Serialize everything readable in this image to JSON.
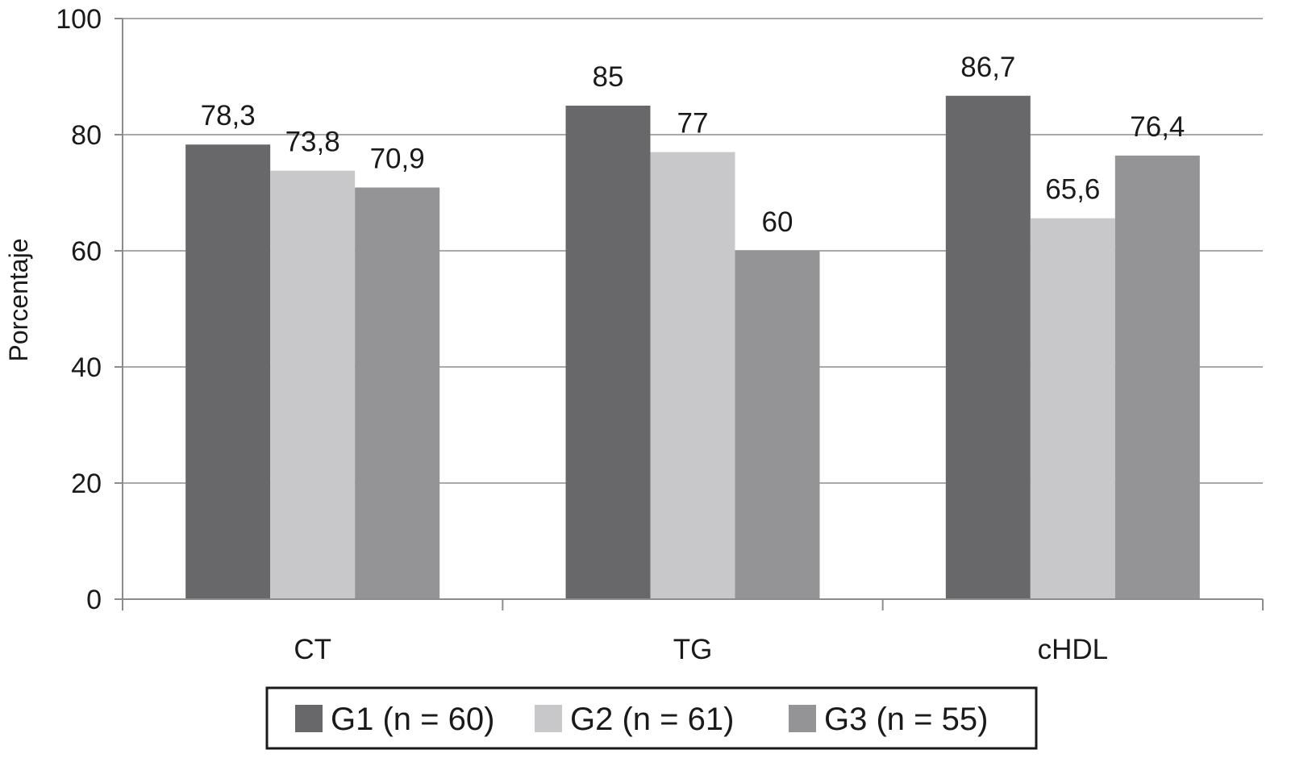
{
  "chart_data": {
    "type": "bar",
    "ylabel": "Porcentaje",
    "xlabel": "",
    "ylim": [
      0,
      100
    ],
    "yticks": [
      0,
      20,
      40,
      60,
      80,
      100
    ],
    "grid": true,
    "legend_position": "bottom",
    "categories": [
      "CT",
      "TG",
      "cHDL"
    ],
    "series": [
      {
        "name": "G1 (n = 60)",
        "values": [
          78.3,
          85,
          86.7
        ],
        "labels": [
          "78,3",
          "85",
          "86,7"
        ],
        "color": "#68686b"
      },
      {
        "name": "G2 (n = 61)",
        "values": [
          73.8,
          77,
          65.6
        ],
        "labels": [
          "73,8",
          "77",
          "65,6"
        ],
        "color": "#c8c8ca"
      },
      {
        "name": "G3 (n = 55)",
        "values": [
          70.9,
          60,
          76.4
        ],
        "labels": [
          "70,9",
          "60",
          "76,4"
        ],
        "color": "#949497"
      }
    ]
  }
}
